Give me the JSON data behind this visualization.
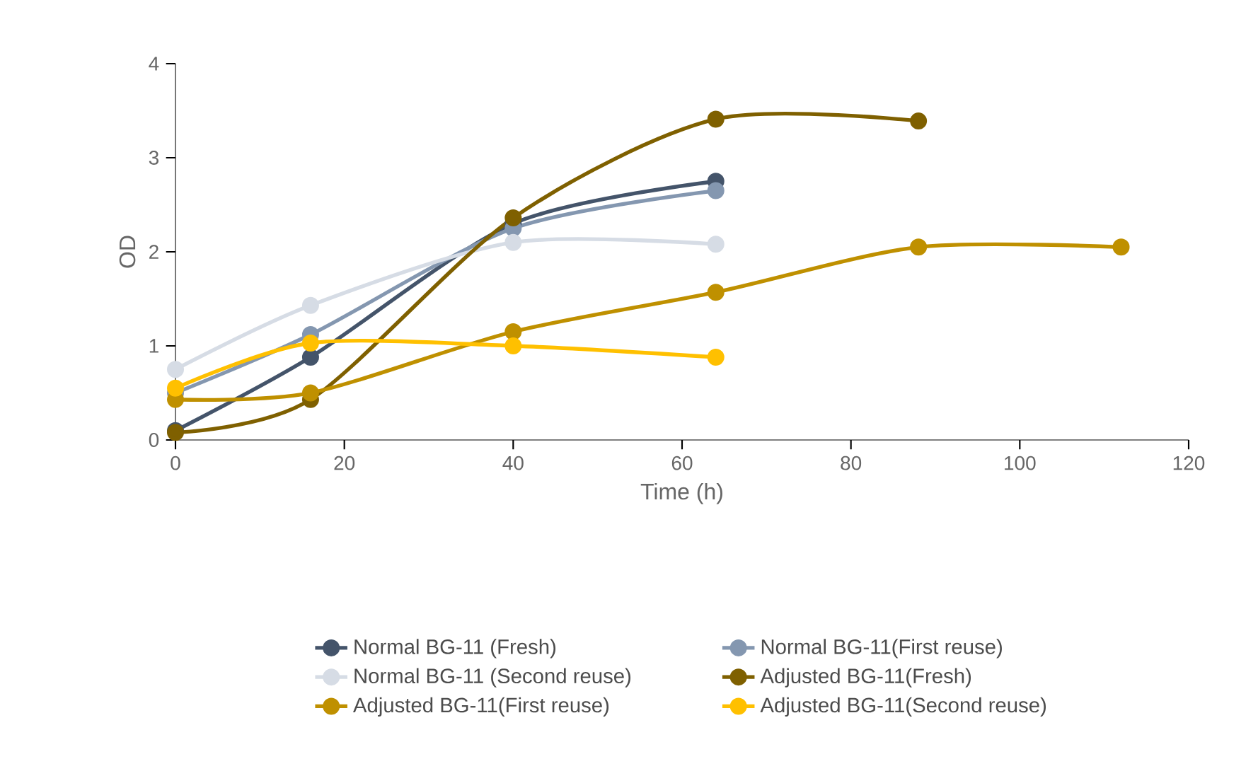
{
  "chart_data": {
    "type": "line",
    "xlabel": "Time (h)",
    "ylabel": "OD",
    "xlim": [
      0,
      120
    ],
    "xticks": [
      0,
      20,
      40,
      60,
      80,
      100,
      120
    ],
    "ylim": [
      0,
      4
    ],
    "yticks": [
      0,
      1,
      2,
      3,
      4
    ],
    "grid": false,
    "legend": "bottom",
    "marker": "circle",
    "line_style": "solid",
    "series": [
      {
        "name": "Normal BG-11 (Fresh)",
        "color": "#44546a",
        "x": [
          0,
          16,
          40,
          64
        ],
        "values": [
          0.1,
          0.88,
          2.3,
          2.75
        ]
      },
      {
        "name": "Normal BG-11(First reuse)",
        "color": "#8497b0",
        "x": [
          0,
          16,
          40,
          64
        ],
        "values": [
          0.5,
          1.12,
          2.25,
          2.65
        ]
      },
      {
        "name": "Normal BG-11 (Second reuse)",
        "color": "#d6dce5",
        "x": [
          0,
          16,
          40,
          64
        ],
        "values": [
          0.75,
          1.43,
          2.1,
          2.08
        ]
      },
      {
        "name": "Adjusted BG-11(Fresh)",
        "color": "#7f6000",
        "x": [
          0,
          16,
          40,
          64,
          88
        ],
        "values": [
          0.08,
          0.43,
          2.36,
          3.41,
          3.39
        ]
      },
      {
        "name": "Adjusted BG-11(First reuse)",
        "color": "#bf9000",
        "x": [
          0,
          16,
          40,
          64,
          88,
          112
        ],
        "values": [
          0.43,
          0.5,
          1.15,
          1.57,
          2.05,
          2.05
        ]
      },
      {
        "name": "Adjusted BG-11(Second reuse)",
        "color": "#ffc000",
        "x": [
          0,
          16,
          40,
          64
        ],
        "values": [
          0.55,
          1.03,
          1.0,
          0.88
        ]
      }
    ]
  }
}
